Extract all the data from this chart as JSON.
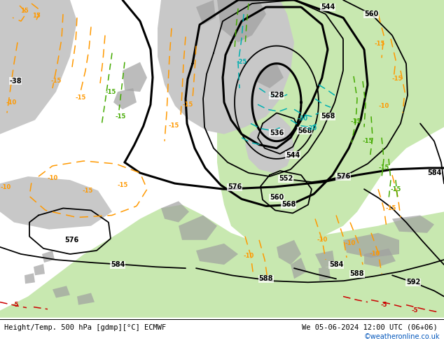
{
  "title_left": "Height/Temp. 500 hPa [gdmp][°C] ECMWF",
  "title_right": "We 05-06-2024 12:00 UTC (06+06)",
  "credit": "©weatheronline.co.uk",
  "green_bg": "#c8e8b0",
  "gray_bg": "#c8c8c8",
  "dark_land": "#a0a0a0",
  "ocean_bg": "#d8d8d8",
  "height_color": "#000000",
  "orange_color": "#ff9900",
  "red_color": "#cc0000",
  "green_color": "#44aa00",
  "cyan_color": "#00b0b0",
  "credit_color": "#0055bb",
  "dpi": 100,
  "figsize": [
    6.34,
    4.9
  ]
}
